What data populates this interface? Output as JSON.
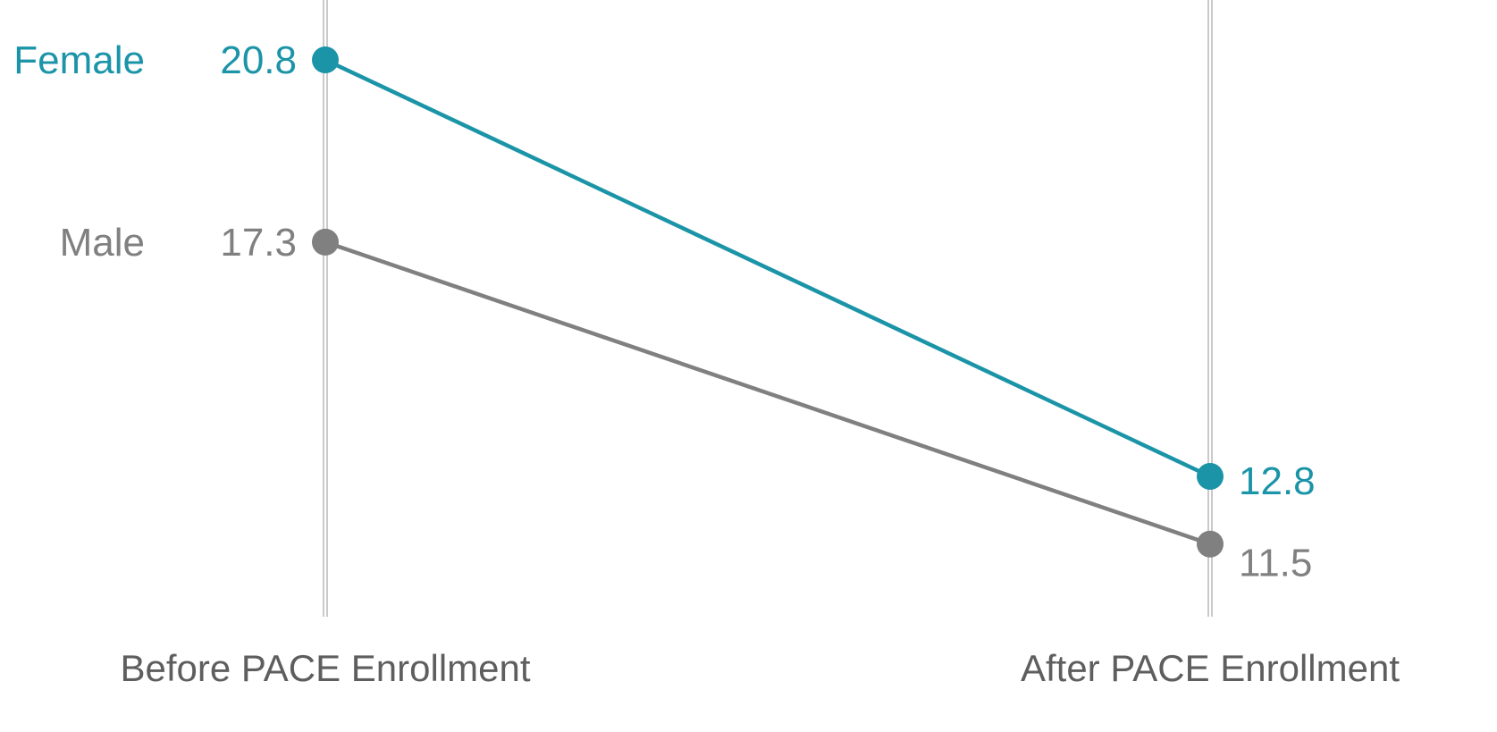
{
  "chart_data": {
    "type": "line",
    "title": "",
    "xlabel": "",
    "ylabel": "",
    "categories": [
      "Before PACE Enrollment",
      "After PACE Enrollment"
    ],
    "series": [
      {
        "name": "Female",
        "values": [
          20.8,
          12.8
        ],
        "value_labels": [
          "20.8",
          "12.8"
        ],
        "color": "#1b94a8"
      },
      {
        "name": "Male",
        "values": [
          17.3,
          11.5
        ],
        "value_labels": [
          "17.3",
          "11.5"
        ],
        "color": "#808080"
      }
    ],
    "ylim": [
      7,
      21.9
    ],
    "grid": false,
    "legend": "left labels"
  }
}
